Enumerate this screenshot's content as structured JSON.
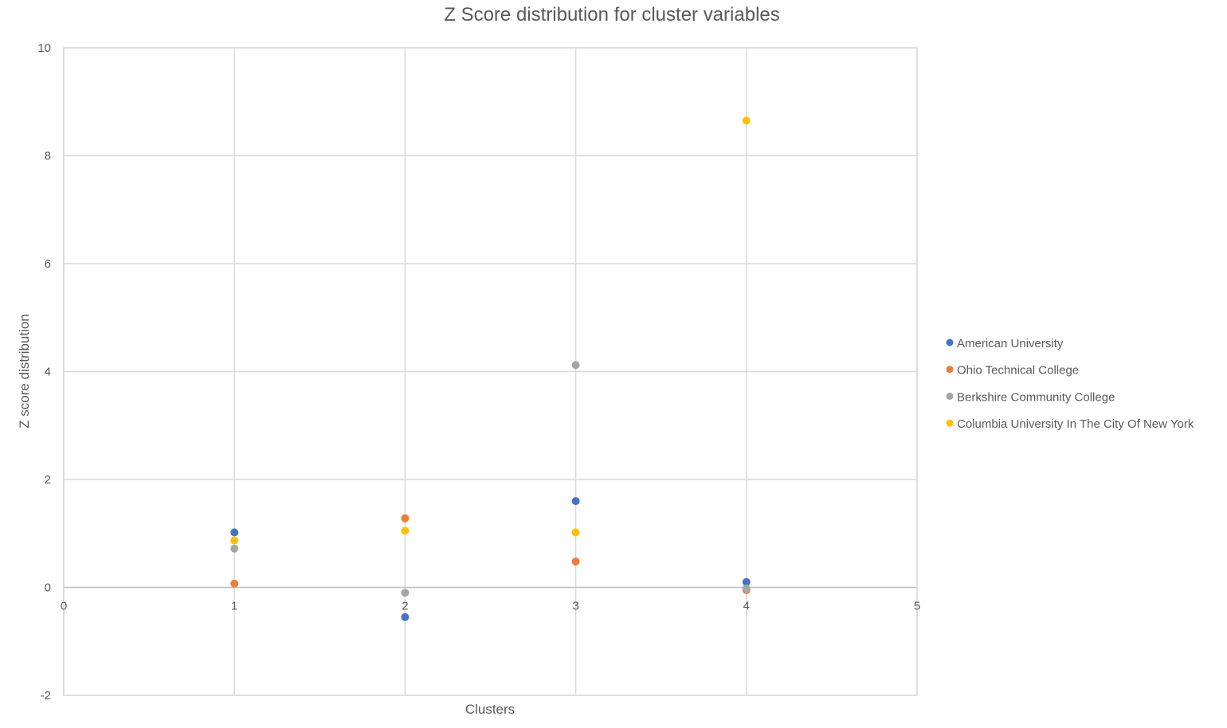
{
  "chart_data": {
    "type": "scatter",
    "title": "Z Score distribution for cluster variables",
    "xlabel": "Clusters",
    "ylabel": "Z score distribution",
    "xlim": [
      0,
      5
    ],
    "ylim": [
      -2,
      10
    ],
    "x_ticks": [
      "0",
      "1",
      "2",
      "3",
      "4",
      "5"
    ],
    "y_ticks": [
      "-2",
      "0",
      "2",
      "4",
      "6",
      "8",
      "10"
    ],
    "grid": true,
    "legend_position": "right",
    "series": [
      {
        "name": "American University",
        "color": "#4472c4",
        "points": [
          [
            1,
            1.02
          ],
          [
            2,
            -0.55
          ],
          [
            3,
            1.6
          ],
          [
            4,
            0.1
          ]
        ]
      },
      {
        "name": "Ohio Technical College",
        "color": "#ed7d31",
        "points": [
          [
            1,
            0.07
          ],
          [
            2,
            1.28
          ],
          [
            3,
            0.48
          ],
          [
            4,
            -0.05
          ]
        ]
      },
      {
        "name": "Berkshire Community College",
        "color": "#a5a5a5",
        "points": [
          [
            1,
            0.72
          ],
          [
            2,
            -0.1
          ],
          [
            3,
            4.12
          ],
          [
            4,
            -0.02
          ]
        ]
      },
      {
        "name": "Columbia University In The City Of New York",
        "color": "#ffc000",
        "points": [
          [
            1,
            0.87
          ],
          [
            2,
            1.05
          ],
          [
            3,
            1.02
          ],
          [
            4,
            8.65
          ]
        ]
      }
    ]
  }
}
